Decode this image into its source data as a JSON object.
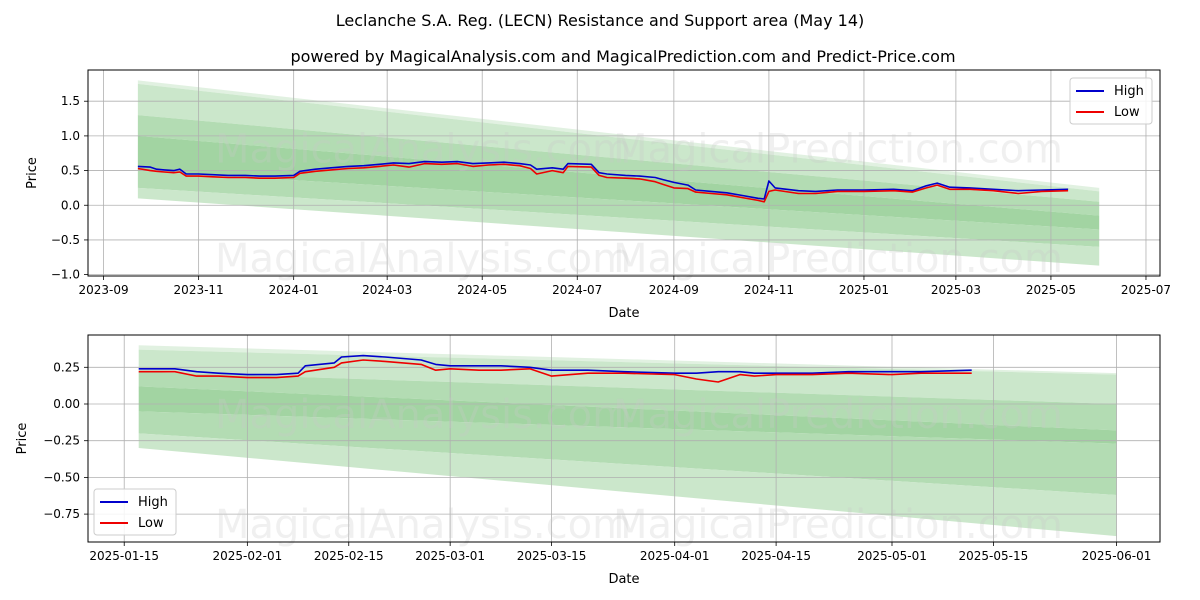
{
  "title": "Leclanche S.A. Reg. (LECN) Resistance and Support area (May 14)",
  "subtitle": "powered by MagicalAnalysis.com and MagicalPrediction.com and Predict-Price.com",
  "watermarks": [
    "MagicalAnalysis.com",
    "MagicalPrediction.com"
  ],
  "colors": {
    "high": "#0000cc",
    "low": "#ee0000",
    "band": "#2e9a2e",
    "grid": "#b0b0b0"
  },
  "chart_data": [
    {
      "type": "line",
      "xlabel": "Date",
      "ylabel": "Price",
      "x_ticks": [
        "2023-09",
        "2023-11",
        "2024-01",
        "2024-03",
        "2024-05",
        "2024-07",
        "2024-09",
        "2024-11",
        "2025-01",
        "2025-03",
        "2025-05",
        "2025-07"
      ],
      "y_ticks": [
        "1.5",
        "1.0",
        "0.5",
        "0.0",
        "−0.5",
        "−1.0"
      ],
      "ylim": [
        -1.02,
        1.95
      ],
      "xlim": [
        "2023-08-22",
        "2025-07-10"
      ],
      "grid": true,
      "legend": "top-right",
      "legend_entries": [
        "High",
        "Low"
      ],
      "bands": {
        "start": "2023-09-23",
        "end": "2025-06-01",
        "start_levels": [
          1.8,
          1.75,
          1.3,
          1.0,
          0.5,
          0.25,
          0.1
        ],
        "end_levels": [
          0.25,
          0.2,
          0.05,
          -0.15,
          -0.35,
          -0.6,
          -0.87
        ]
      },
      "series": [
        {
          "name": "High",
          "points": [
            [
              "2023-09-23",
              0.56
            ],
            [
              "2023-10-01",
              0.55
            ],
            [
              "2023-10-05",
              0.52
            ],
            [
              "2023-10-10",
              0.51
            ],
            [
              "2023-10-16",
              0.5
            ],
            [
              "2023-10-20",
              0.52
            ],
            [
              "2023-10-24",
              0.45
            ],
            [
              "2023-11-01",
              0.45
            ],
            [
              "2023-11-10",
              0.44
            ],
            [
              "2023-11-20",
              0.43
            ],
            [
              "2023-12-01",
              0.43
            ],
            [
              "2023-12-10",
              0.42
            ],
            [
              "2023-12-20",
              0.42
            ],
            [
              "2024-01-01",
              0.43
            ],
            [
              "2024-01-05",
              0.49
            ],
            [
              "2024-01-15",
              0.52
            ],
            [
              "2024-01-25",
              0.54
            ],
            [
              "2024-02-05",
              0.56
            ],
            [
              "2024-02-15",
              0.57
            ],
            [
              "2024-02-25",
              0.59
            ],
            [
              "2024-03-05",
              0.61
            ],
            [
              "2024-03-15",
              0.6
            ],
            [
              "2024-03-25",
              0.63
            ],
            [
              "2024-04-05",
              0.62
            ],
            [
              "2024-04-15",
              0.63
            ],
            [
              "2024-04-25",
              0.6
            ],
            [
              "2024-05-05",
              0.61
            ],
            [
              "2024-05-15",
              0.62
            ],
            [
              "2024-05-25",
              0.6
            ],
            [
              "2024-06-01",
              0.58
            ],
            [
              "2024-06-05",
              0.52
            ],
            [
              "2024-06-15",
              0.54
            ],
            [
              "2024-06-22",
              0.52
            ],
            [
              "2024-06-25",
              0.6
            ],
            [
              "2024-07-10",
              0.59
            ],
            [
              "2024-07-15",
              0.47
            ],
            [
              "2024-07-20",
              0.45
            ],
            [
              "2024-08-01",
              0.43
            ],
            [
              "2024-08-10",
              0.42
            ],
            [
              "2024-08-20",
              0.4
            ],
            [
              "2024-08-25",
              0.37
            ],
            [
              "2024-09-01",
              0.33
            ],
            [
              "2024-09-10",
              0.29
            ],
            [
              "2024-09-15",
              0.22
            ],
            [
              "2024-09-25",
              0.2
            ],
            [
              "2024-10-05",
              0.18
            ],
            [
              "2024-10-15",
              0.14
            ],
            [
              "2024-10-25",
              0.1
            ],
            [
              "2024-10-29",
              0.09
            ],
            [
              "2024-11-01",
              0.35
            ],
            [
              "2024-11-05",
              0.25
            ],
            [
              "2024-11-20",
              0.21
            ],
            [
              "2024-12-01",
              0.2
            ],
            [
              "2024-12-15",
              0.22
            ],
            [
              "2025-01-01",
              0.22
            ],
            [
              "2025-01-20",
              0.23
            ],
            [
              "2025-02-01",
              0.21
            ],
            [
              "2025-02-10",
              0.28
            ],
            [
              "2025-02-17",
              0.32
            ],
            [
              "2025-02-25",
              0.26
            ],
            [
              "2025-03-10",
              0.25
            ],
            [
              "2025-03-25",
              0.23
            ],
            [
              "2025-04-10",
              0.21
            ],
            [
              "2025-04-25",
              0.22
            ],
            [
              "2025-05-12",
              0.23
            ]
          ]
        },
        {
          "name": "Low",
          "points": [
            [
              "2023-09-23",
              0.53
            ],
            [
              "2023-10-01",
              0.5
            ],
            [
              "2023-10-05",
              0.49
            ],
            [
              "2023-10-10",
              0.48
            ],
            [
              "2023-10-16",
              0.47
            ],
            [
              "2023-10-20",
              0.48
            ],
            [
              "2023-10-24",
              0.42
            ],
            [
              "2023-11-01",
              0.42
            ],
            [
              "2023-11-10",
              0.41
            ],
            [
              "2023-11-20",
              0.4
            ],
            [
              "2023-12-01",
              0.4
            ],
            [
              "2023-12-10",
              0.39
            ],
            [
              "2023-12-20",
              0.39
            ],
            [
              "2024-01-01",
              0.4
            ],
            [
              "2024-01-05",
              0.46
            ],
            [
              "2024-01-15",
              0.49
            ],
            [
              "2024-01-25",
              0.51
            ],
            [
              "2024-02-05",
              0.53
            ],
            [
              "2024-02-15",
              0.54
            ],
            [
              "2024-02-25",
              0.56
            ],
            [
              "2024-03-05",
              0.58
            ],
            [
              "2024-03-15",
              0.55
            ],
            [
              "2024-03-25",
              0.6
            ],
            [
              "2024-04-05",
              0.59
            ],
            [
              "2024-04-15",
              0.6
            ],
            [
              "2024-04-25",
              0.56
            ],
            [
              "2024-05-05",
              0.58
            ],
            [
              "2024-05-15",
              0.59
            ],
            [
              "2024-05-25",
              0.57
            ],
            [
              "2024-06-01",
              0.53
            ],
            [
              "2024-06-05",
              0.45
            ],
            [
              "2024-06-15",
              0.5
            ],
            [
              "2024-06-22",
              0.47
            ],
            [
              "2024-06-25",
              0.56
            ],
            [
              "2024-07-10",
              0.55
            ],
            [
              "2024-07-15",
              0.43
            ],
            [
              "2024-07-20",
              0.4
            ],
            [
              "2024-08-01",
              0.39
            ],
            [
              "2024-08-10",
              0.38
            ],
            [
              "2024-08-20",
              0.34
            ],
            [
              "2024-08-25",
              0.3
            ],
            [
              "2024-09-01",
              0.25
            ],
            [
              "2024-09-10",
              0.24
            ],
            [
              "2024-09-15",
              0.19
            ],
            [
              "2024-09-25",
              0.17
            ],
            [
              "2024-10-05",
              0.15
            ],
            [
              "2024-10-15",
              0.11
            ],
            [
              "2024-10-25",
              0.07
            ],
            [
              "2024-10-29",
              0.05
            ],
            [
              "2024-11-01",
              0.2
            ],
            [
              "2024-11-05",
              0.22
            ],
            [
              "2024-11-20",
              0.17
            ],
            [
              "2024-12-01",
              0.17
            ],
            [
              "2024-12-15",
              0.2
            ],
            [
              "2025-01-01",
              0.2
            ],
            [
              "2025-01-20",
              0.21
            ],
            [
              "2025-02-01",
              0.19
            ],
            [
              "2025-02-10",
              0.25
            ],
            [
              "2025-02-17",
              0.29
            ],
            [
              "2025-02-25",
              0.23
            ],
            [
              "2025-03-10",
              0.23
            ],
            [
              "2025-03-25",
              0.21
            ],
            [
              "2025-04-10",
              0.17
            ],
            [
              "2025-04-25",
              0.2
            ],
            [
              "2025-05-12",
              0.21
            ]
          ]
        }
      ]
    },
    {
      "type": "line",
      "xlabel": "Date",
      "ylabel": "Price",
      "x_ticks": [
        "2025-01-15",
        "2025-02-01",
        "2025-02-15",
        "2025-03-01",
        "2025-03-15",
        "2025-04-01",
        "2025-04-15",
        "2025-05-01",
        "2025-05-15",
        "2025-06-01"
      ],
      "y_ticks": [
        "0.25",
        "0.00",
        "−0.25",
        "−0.50",
        "−0.75"
      ],
      "ylim": [
        -0.94,
        0.47
      ],
      "xlim": [
        "2025-01-10",
        "2025-06-07"
      ],
      "grid": true,
      "legend": "bottom-left",
      "legend_entries": [
        "High",
        "Low"
      ],
      "bands": {
        "start": "2025-01-17",
        "end": "2025-06-01",
        "start_levels": [
          0.4,
          0.37,
          0.22,
          0.12,
          -0.05,
          -0.2,
          -0.3
        ],
        "end_levels": [
          0.21,
          0.2,
          0.0,
          -0.18,
          -0.27,
          -0.62,
          -0.9
        ]
      },
      "series": [
        {
          "name": "High",
          "points": [
            [
              "2025-01-17",
              0.24
            ],
            [
              "2025-01-22",
              0.24
            ],
            [
              "2025-01-25",
              0.22
            ],
            [
              "2025-01-28",
              0.21
            ],
            [
              "2025-02-01",
              0.2
            ],
            [
              "2025-02-05",
              0.2
            ],
            [
              "2025-02-08",
              0.21
            ],
            [
              "2025-02-09",
              0.26
            ],
            [
              "2025-02-13",
              0.28
            ],
            [
              "2025-02-14",
              0.32
            ],
            [
              "2025-02-17",
              0.33
            ],
            [
              "2025-02-20",
              0.32
            ],
            [
              "2025-02-25",
              0.3
            ],
            [
              "2025-02-27",
              0.27
            ],
            [
              "2025-03-01",
              0.26
            ],
            [
              "2025-03-05",
              0.26
            ],
            [
              "2025-03-08",
              0.26
            ],
            [
              "2025-03-12",
              0.25
            ],
            [
              "2025-03-15",
              0.23
            ],
            [
              "2025-03-20",
              0.23
            ],
            [
              "2025-03-25",
              0.22
            ],
            [
              "2025-04-01",
              0.21
            ],
            [
              "2025-04-04",
              0.21
            ],
            [
              "2025-04-07",
              0.22
            ],
            [
              "2025-04-10",
              0.22
            ],
            [
              "2025-04-12",
              0.21
            ],
            [
              "2025-04-15",
              0.21
            ],
            [
              "2025-04-20",
              0.21
            ],
            [
              "2025-04-25",
              0.22
            ],
            [
              "2025-05-01",
              0.22
            ],
            [
              "2025-05-05",
              0.22
            ],
            [
              "2025-05-12",
              0.23
            ]
          ]
        },
        {
          "name": "Low",
          "points": [
            [
              "2025-01-17",
              0.22
            ],
            [
              "2025-01-22",
              0.22
            ],
            [
              "2025-01-25",
              0.19
            ],
            [
              "2025-01-28",
              0.19
            ],
            [
              "2025-02-01",
              0.18
            ],
            [
              "2025-02-05",
              0.18
            ],
            [
              "2025-02-08",
              0.19
            ],
            [
              "2025-02-09",
              0.22
            ],
            [
              "2025-02-13",
              0.25
            ],
            [
              "2025-02-14",
              0.28
            ],
            [
              "2025-02-17",
              0.3
            ],
            [
              "2025-02-20",
              0.29
            ],
            [
              "2025-02-25",
              0.27
            ],
            [
              "2025-02-27",
              0.23
            ],
            [
              "2025-03-01",
              0.24
            ],
            [
              "2025-03-05",
              0.23
            ],
            [
              "2025-03-08",
              0.23
            ],
            [
              "2025-03-12",
              0.24
            ],
            [
              "2025-03-15",
              0.19
            ],
            [
              "2025-03-20",
              0.21
            ],
            [
              "2025-03-25",
              0.21
            ],
            [
              "2025-04-01",
              0.2
            ],
            [
              "2025-04-04",
              0.17
            ],
            [
              "2025-04-07",
              0.15
            ],
            [
              "2025-04-10",
              0.2
            ],
            [
              "2025-04-12",
              0.19
            ],
            [
              "2025-04-15",
              0.2
            ],
            [
              "2025-04-20",
              0.2
            ],
            [
              "2025-04-25",
              0.21
            ],
            [
              "2025-05-01",
              0.2
            ],
            [
              "2025-05-05",
              0.21
            ],
            [
              "2025-05-12",
              0.21
            ]
          ]
        }
      ]
    }
  ]
}
